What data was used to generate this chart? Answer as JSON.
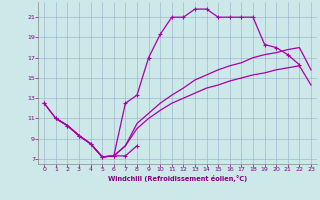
{
  "xlabel": "Windchill (Refroidissement éolien,°C)",
  "bg_color": "#cce8e8",
  "grid_color": "#99aacc",
  "line_color": "#aa00aa",
  "xlim": [
    -0.5,
    23.5
  ],
  "ylim": [
    6.5,
    22.5
  ],
  "xticks": [
    0,
    1,
    2,
    3,
    4,
    5,
    6,
    7,
    8,
    9,
    10,
    11,
    12,
    13,
    14,
    15,
    16,
    17,
    18,
    19,
    20,
    21,
    22,
    23
  ],
  "yticks": [
    7,
    9,
    11,
    13,
    15,
    17,
    19,
    21
  ],
  "line_upper_x": [
    0,
    1,
    2,
    3,
    4,
    5,
    6,
    7,
    8,
    9,
    10,
    11,
    12,
    13,
    14,
    15,
    16,
    17,
    18,
    19,
    20,
    21,
    22
  ],
  "line_upper_y": [
    12.5,
    11.0,
    10.3,
    9.3,
    8.5,
    7.2,
    7.3,
    12.5,
    13.3,
    17.0,
    19.3,
    21.0,
    21.0,
    21.8,
    21.8,
    21.0,
    21.0,
    21.0,
    21.0,
    18.3,
    18.0,
    17.3,
    16.3
  ],
  "line_lower_x": [
    0,
    1,
    2,
    3,
    4,
    5,
    6,
    7,
    8
  ],
  "line_lower_y": [
    12.5,
    11.0,
    10.3,
    9.3,
    8.5,
    7.2,
    7.3,
    7.3,
    8.3
  ],
  "line_mid1_x": [
    1,
    2,
    3,
    4,
    5,
    6,
    7,
    8,
    9,
    10,
    11,
    12,
    13,
    14,
    15,
    16,
    17,
    18,
    19,
    20,
    21,
    22,
    23
  ],
  "line_mid1_y": [
    11.0,
    10.3,
    9.3,
    8.5,
    7.2,
    7.3,
    8.3,
    10.0,
    11.0,
    11.8,
    12.5,
    13.0,
    13.5,
    14.0,
    14.3,
    14.7,
    15.0,
    15.3,
    15.5,
    15.8,
    16.0,
    16.2,
    14.3
  ],
  "line_mid2_x": [
    1,
    2,
    3,
    4,
    5,
    6,
    7,
    8,
    9,
    10,
    11,
    12,
    13,
    14,
    15,
    16,
    17,
    18,
    19,
    20,
    21,
    22,
    23
  ],
  "line_mid2_y": [
    11.0,
    10.3,
    9.3,
    8.5,
    7.2,
    7.3,
    8.3,
    10.5,
    11.5,
    12.5,
    13.3,
    14.0,
    14.8,
    15.3,
    15.8,
    16.2,
    16.5,
    17.0,
    17.3,
    17.5,
    17.8,
    18.0,
    15.8
  ]
}
